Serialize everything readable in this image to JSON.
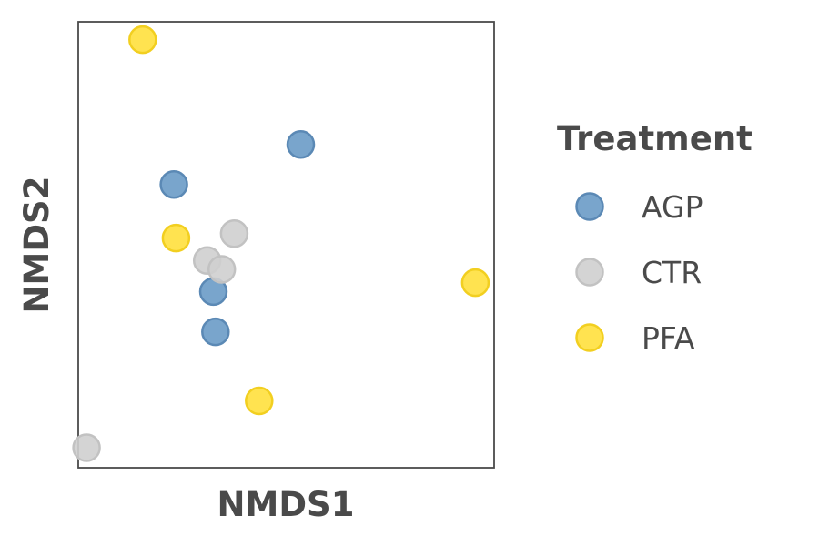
{
  "chart_data": {
    "type": "scatter",
    "xlabel": "NMDS1",
    "ylabel": "NMDS2",
    "xlim": [
      -1.0,
      1.0
    ],
    "ylim": [
      -1.0,
      1.0
    ],
    "grid": false,
    "x_ticks_shown": false,
    "y_ticks_shown": false,
    "legend": {
      "title": "Treatment",
      "placement": "right",
      "entries": [
        "AGP",
        "CTR",
        "PFA"
      ]
    },
    "series": [
      {
        "name": "AGP",
        "color": "#6a9bc6",
        "edge_color": "#5b89b5",
        "points": [
          {
            "x": 0.07,
            "y": 0.45
          },
          {
            "x": -0.54,
            "y": 0.27
          },
          {
            "x": -0.35,
            "y": -0.21
          },
          {
            "x": -0.34,
            "y": -0.39
          }
        ]
      },
      {
        "name": "CTR",
        "color": "#cfcfcf",
        "edge_color": "#c2c2c2",
        "points": [
          {
            "x": -0.25,
            "y": 0.05
          },
          {
            "x": -0.38,
            "y": -0.07
          },
          {
            "x": -0.31,
            "y": -0.11
          },
          {
            "x": -0.96,
            "y": -0.91
          }
        ]
      },
      {
        "name": "PFA",
        "color": "#ffe03d",
        "edge_color": "#f2cf20",
        "points": [
          {
            "x": -0.69,
            "y": 0.92
          },
          {
            "x": -0.53,
            "y": 0.03
          },
          {
            "x": 0.91,
            "y": -0.17
          },
          {
            "x": -0.13,
            "y": -0.7
          }
        ]
      }
    ]
  }
}
